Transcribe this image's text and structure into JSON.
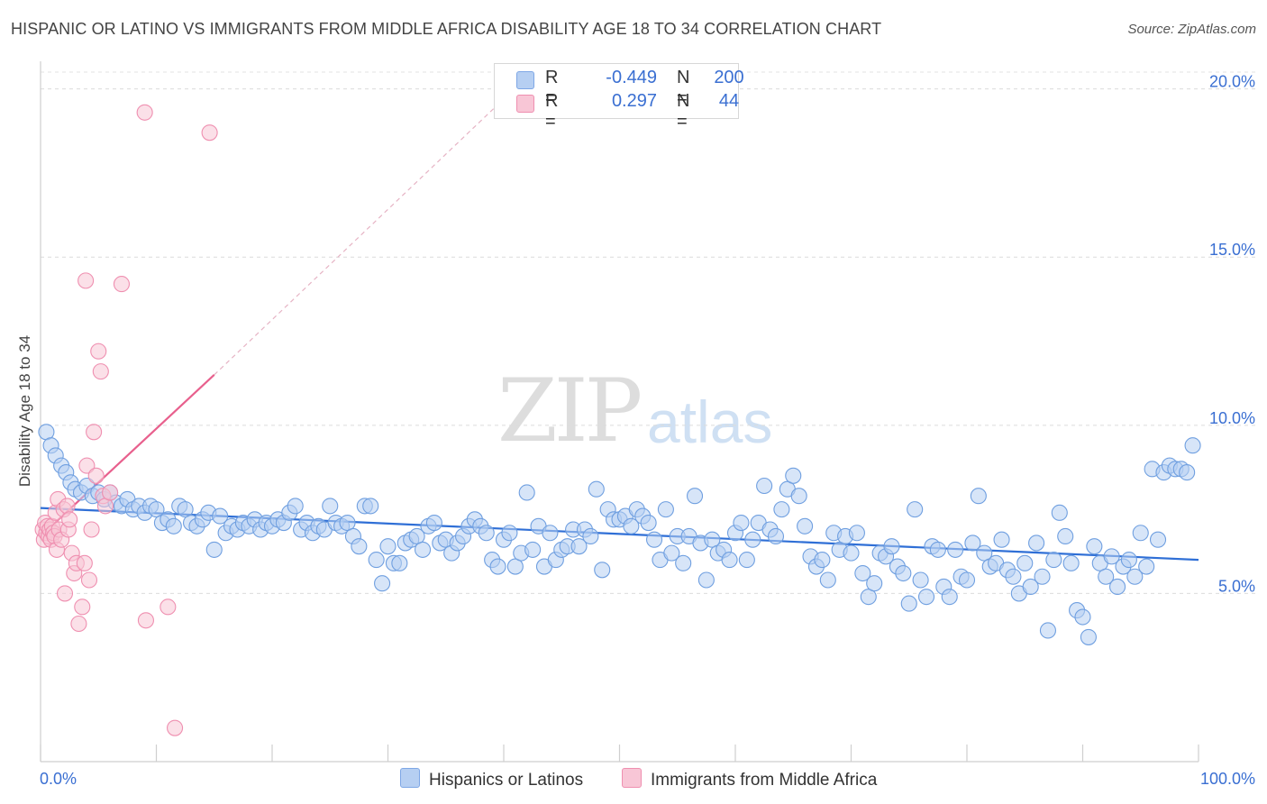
{
  "title": "HISPANIC OR LATINO VS IMMIGRANTS FROM MIDDLE AFRICA DISABILITY AGE 18 TO 34 CORRELATION CHART",
  "source": "Source: ZipAtlas.com",
  "watermark": {
    "zip": "ZIP",
    "atlas": "atlas"
  },
  "legend": {
    "rows": [
      {
        "r_label": "R =",
        "r_value": "-0.449",
        "n_label": "N =",
        "n_value": "200",
        "color": "#a9c8f0"
      },
      {
        "r_label": "R =",
        "r_value": "0.297",
        "n_label": "N =",
        "n_value": "44",
        "color": "#f6b3c8"
      }
    ]
  },
  "bottom_legend": [
    "Hispanics or Latinos",
    "Immigrants from Middle Africa"
  ],
  "chart_data": {
    "type": "scatter",
    "title": "HISPANIC OR LATINO VS IMMIGRANTS FROM MIDDLE AFRICA DISABILITY AGE 18 TO 34 CORRELATION CHART",
    "xlabel": "",
    "ylabel": "Disability Age 18 to 34",
    "xlim": [
      0,
      100
    ],
    "ylim": [
      0,
      20.5
    ],
    "x_tick_labels": [
      "0.0%",
      "100.0%"
    ],
    "y_ticks": [
      5,
      10,
      15,
      20
    ],
    "y_tick_labels": [
      "5.0%",
      "10.0%",
      "15.0%",
      "20.0%"
    ],
    "grid": true,
    "legend_position": "top-center",
    "series": [
      {
        "name": "Hispanics or Latinos",
        "color": "#6f9fe0",
        "fill": "#b6cff2",
        "trend": {
          "x": [
            0,
            100
          ],
          "y": [
            7.54,
            6.0
          ]
        },
        "points": [
          [
            0.5,
            9.8
          ],
          [
            0.9,
            9.4
          ],
          [
            1.3,
            9.1
          ],
          [
            1.8,
            8.8
          ],
          [
            2.2,
            8.6
          ],
          [
            2.6,
            8.3
          ],
          [
            3.0,
            8.1
          ],
          [
            3.5,
            8.0
          ],
          [
            4.0,
            8.2
          ],
          [
            4.5,
            7.9
          ],
          [
            5.0,
            8.0
          ],
          [
            5.5,
            7.8
          ],
          [
            6.0,
            8.0
          ],
          [
            6.5,
            7.7
          ],
          [
            7.0,
            7.6
          ],
          [
            7.5,
            7.8
          ],
          [
            8.0,
            7.5
          ],
          [
            8.5,
            7.6
          ],
          [
            9.0,
            7.4
          ],
          [
            9.5,
            7.6
          ],
          [
            10.0,
            7.5
          ],
          [
            10.5,
            7.1
          ],
          [
            11.0,
            7.2
          ],
          [
            11.5,
            7.0
          ],
          [
            12.0,
            7.6
          ],
          [
            12.5,
            7.5
          ],
          [
            13.0,
            7.1
          ],
          [
            13.5,
            7.0
          ],
          [
            14.0,
            7.2
          ],
          [
            14.5,
            7.4
          ],
          [
            15.0,
            6.3
          ],
          [
            15.5,
            7.3
          ],
          [
            16.0,
            6.8
          ],
          [
            16.5,
            7.0
          ],
          [
            17.0,
            6.9
          ],
          [
            17.5,
            7.1
          ],
          [
            18.0,
            7.0
          ],
          [
            18.5,
            7.2
          ],
          [
            19.0,
            6.9
          ],
          [
            19.5,
            7.1
          ],
          [
            20.0,
            7.0
          ],
          [
            20.5,
            7.2
          ],
          [
            21.0,
            7.1
          ],
          [
            21.5,
            7.4
          ],
          [
            22.0,
            7.6
          ],
          [
            22.5,
            6.9
          ],
          [
            23.0,
            7.1
          ],
          [
            23.5,
            6.8
          ],
          [
            24.0,
            7.0
          ],
          [
            24.5,
            6.9
          ],
          [
            25.0,
            7.6
          ],
          [
            25.5,
            7.1
          ],
          [
            26.0,
            7.0
          ],
          [
            26.5,
            7.1
          ],
          [
            27.0,
            6.7
          ],
          [
            27.5,
            6.4
          ],
          [
            28.0,
            7.6
          ],
          [
            28.5,
            7.6
          ],
          [
            29.0,
            6.0
          ],
          [
            29.5,
            5.3
          ],
          [
            30.0,
            6.4
          ],
          [
            30.5,
            5.9
          ],
          [
            31.0,
            5.9
          ],
          [
            31.5,
            6.5
          ],
          [
            32.0,
            6.6
          ],
          [
            32.5,
            6.7
          ],
          [
            33.0,
            6.3
          ],
          [
            33.5,
            7.0
          ],
          [
            34.0,
            7.1
          ],
          [
            34.5,
            6.5
          ],
          [
            35.0,
            6.6
          ],
          [
            35.5,
            6.2
          ],
          [
            36.0,
            6.5
          ],
          [
            36.5,
            6.7
          ],
          [
            37.0,
            7.0
          ],
          [
            37.5,
            7.2
          ],
          [
            38.0,
            7.0
          ],
          [
            38.5,
            6.8
          ],
          [
            39.0,
            6.0
          ],
          [
            39.5,
            5.8
          ],
          [
            40.0,
            6.6
          ],
          [
            40.5,
            6.8
          ],
          [
            41.0,
            5.8
          ],
          [
            41.5,
            6.2
          ],
          [
            42.0,
            8.0
          ],
          [
            42.5,
            6.3
          ],
          [
            43.0,
            7.0
          ],
          [
            43.5,
            5.8
          ],
          [
            44.0,
            6.8
          ],
          [
            44.5,
            6.0
          ],
          [
            45.0,
            6.3
          ],
          [
            45.5,
            6.4
          ],
          [
            46.0,
            6.9
          ],
          [
            46.5,
            6.4
          ],
          [
            47.0,
            6.9
          ],
          [
            47.5,
            6.7
          ],
          [
            48.0,
            8.1
          ],
          [
            48.5,
            5.7
          ],
          [
            49.0,
            7.5
          ],
          [
            49.5,
            7.2
          ],
          [
            50.0,
            7.2
          ],
          [
            50.5,
            7.3
          ],
          [
            51.0,
            7.0
          ],
          [
            51.5,
            7.5
          ],
          [
            52.0,
            7.3
          ],
          [
            52.5,
            7.1
          ],
          [
            53.0,
            6.6
          ],
          [
            53.5,
            6.0
          ],
          [
            54.0,
            7.5
          ],
          [
            54.5,
            6.2
          ],
          [
            55.0,
            6.7
          ],
          [
            55.5,
            5.9
          ],
          [
            56.0,
            6.7
          ],
          [
            56.5,
            7.9
          ],
          [
            57.0,
            6.5
          ],
          [
            57.5,
            5.4
          ],
          [
            58.0,
            6.6
          ],
          [
            58.5,
            6.2
          ],
          [
            59.0,
            6.3
          ],
          [
            59.5,
            6.0
          ],
          [
            60.0,
            6.8
          ],
          [
            60.5,
            7.1
          ],
          [
            61.0,
            6.0
          ],
          [
            61.5,
            6.6
          ],
          [
            62.0,
            7.1
          ],
          [
            62.5,
            8.2
          ],
          [
            63.0,
            6.9
          ],
          [
            63.5,
            6.7
          ],
          [
            64.0,
            7.5
          ],
          [
            64.5,
            8.1
          ],
          [
            65.0,
            8.5
          ],
          [
            65.5,
            7.9
          ],
          [
            66.0,
            7.0
          ],
          [
            66.5,
            6.1
          ],
          [
            67.0,
            5.8
          ],
          [
            67.5,
            6.0
          ],
          [
            68.0,
            5.4
          ],
          [
            68.5,
            6.8
          ],
          [
            69.0,
            6.3
          ],
          [
            69.5,
            6.7
          ],
          [
            70.0,
            6.2
          ],
          [
            70.5,
            6.8
          ],
          [
            71.0,
            5.6
          ],
          [
            71.5,
            4.9
          ],
          [
            72.0,
            5.3
          ],
          [
            72.5,
            6.2
          ],
          [
            73.0,
            6.1
          ],
          [
            73.5,
            6.4
          ],
          [
            74.0,
            5.8
          ],
          [
            74.5,
            5.6
          ],
          [
            75.0,
            4.7
          ],
          [
            75.5,
            7.5
          ],
          [
            76.0,
            5.4
          ],
          [
            76.5,
            4.9
          ],
          [
            77.0,
            6.4
          ],
          [
            77.5,
            6.3
          ],
          [
            78.0,
            5.2
          ],
          [
            78.5,
            4.9
          ],
          [
            79.0,
            6.3
          ],
          [
            79.5,
            5.5
          ],
          [
            80.0,
            5.4
          ],
          [
            80.5,
            6.5
          ],
          [
            81.0,
            7.9
          ],
          [
            81.5,
            6.2
          ],
          [
            82.0,
            5.8
          ],
          [
            82.5,
            5.9
          ],
          [
            83.0,
            6.6
          ],
          [
            83.5,
            5.7
          ],
          [
            84.0,
            5.5
          ],
          [
            84.5,
            5.0
          ],
          [
            85.0,
            5.9
          ],
          [
            85.5,
            5.2
          ],
          [
            86.0,
            6.5
          ],
          [
            86.5,
            5.5
          ],
          [
            87.0,
            3.9
          ],
          [
            87.5,
            6.0
          ],
          [
            88.0,
            7.4
          ],
          [
            88.5,
            6.7
          ],
          [
            89.0,
            5.9
          ],
          [
            89.5,
            4.5
          ],
          [
            90.0,
            4.3
          ],
          [
            90.5,
            3.7
          ],
          [
            91.0,
            6.4
          ],
          [
            91.5,
            5.9
          ],
          [
            92.0,
            5.5
          ],
          [
            92.5,
            6.1
          ],
          [
            93.0,
            5.2
          ],
          [
            93.5,
            5.8
          ],
          [
            94.0,
            6.0
          ],
          [
            94.5,
            5.5
          ],
          [
            95.0,
            6.8
          ],
          [
            95.5,
            5.8
          ],
          [
            96.0,
            8.7
          ],
          [
            96.5,
            6.6
          ],
          [
            97.0,
            8.6
          ],
          [
            97.5,
            8.8
          ],
          [
            98.0,
            8.7
          ],
          [
            98.5,
            8.7
          ],
          [
            99.0,
            8.6
          ],
          [
            99.5,
            9.4
          ]
        ]
      },
      {
        "name": "Immigrants from Middle Africa",
        "color": "#ef8fb0",
        "fill": "#f8c6d6",
        "trend": {
          "x": [
            0,
            15
          ],
          "y": [
            6.7,
            11.5
          ]
        },
        "trend_extended": {
          "x": [
            15,
            40
          ],
          "y": [
            11.5,
            19.7
          ]
        },
        "points": [
          [
            0.2,
            6.9
          ],
          [
            0.3,
            6.6
          ],
          [
            0.4,
            7.1
          ],
          [
            0.5,
            6.8
          ],
          [
            0.6,
            7.0
          ],
          [
            0.7,
            6.7
          ],
          [
            0.8,
            6.9
          ],
          [
            0.9,
            6.6
          ],
          [
            1.0,
            7.0
          ],
          [
            1.1,
            6.8
          ],
          [
            1.2,
            6.7
          ],
          [
            1.3,
            7.4
          ],
          [
            1.4,
            6.3
          ],
          [
            1.5,
            7.8
          ],
          [
            1.6,
            6.9
          ],
          [
            1.8,
            6.6
          ],
          [
            2.0,
            7.5
          ],
          [
            2.1,
            5.0
          ],
          [
            2.3,
            7.6
          ],
          [
            2.4,
            6.9
          ],
          [
            2.5,
            7.2
          ],
          [
            2.7,
            6.2
          ],
          [
            2.9,
            5.6
          ],
          [
            3.1,
            5.9
          ],
          [
            3.3,
            4.1
          ],
          [
            3.6,
            4.6
          ],
          [
            3.8,
            5.9
          ],
          [
            3.9,
            14.3
          ],
          [
            4.0,
            8.8
          ],
          [
            4.2,
            5.4
          ],
          [
            4.4,
            6.9
          ],
          [
            4.6,
            9.8
          ],
          [
            4.8,
            8.5
          ],
          [
            5.0,
            12.2
          ],
          [
            5.2,
            11.6
          ],
          [
            5.4,
            7.9
          ],
          [
            5.6,
            7.6
          ],
          [
            6.0,
            8.0
          ],
          [
            7.0,
            14.2
          ],
          [
            9.0,
            19.3
          ],
          [
            9.1,
            4.2
          ],
          [
            11.0,
            4.6
          ],
          [
            11.6,
            1.0
          ],
          [
            14.6,
            18.7
          ]
        ]
      }
    ]
  }
}
